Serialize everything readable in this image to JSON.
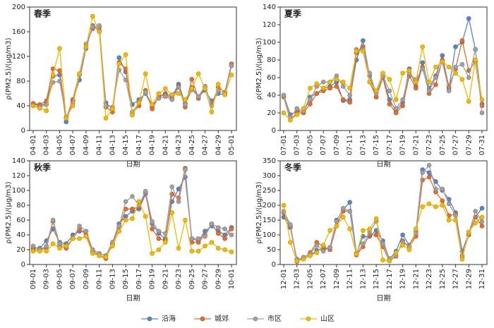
{
  "chart_data": [
    {
      "type": "line",
      "title": "春季",
      "x_label": "日期",
      "y_label": "ρ(PM2.5)/(μg/m3)",
      "categories": [
        "04-01",
        null,
        "04-03",
        null,
        "04-05",
        null,
        "04-07",
        null,
        "04-09",
        null,
        "04-11",
        null,
        "04-13",
        null,
        "04-15",
        null,
        "04-17",
        null,
        "04-19",
        null,
        "04-21",
        null,
        "04-23",
        null,
        "04-25",
        null,
        "04-27",
        null,
        "04-29",
        null,
        "05-01"
      ],
      "ylim": [
        0,
        200
      ],
      "yticks": [
        0,
        40,
        80,
        120,
        160,
        200
      ],
      "series": [
        {
          "name": "沿海",
          "color": "#5b84c4",
          "values": [
            43,
            40,
            44,
            88,
            90,
            14,
            48,
            82,
            133,
            170,
            162,
            45,
            35,
            118,
            95,
            42,
            50,
            60,
            38,
            55,
            60,
            55,
            75,
            44,
            70,
            55,
            65,
            48,
            60,
            58,
            105
          ]
        },
        {
          "name": "城郊",
          "color": "#e46c2c",
          "values": [
            44,
            42,
            48,
            100,
            97,
            20,
            50,
            92,
            140,
            165,
            168,
            38,
            30,
            110,
            100,
            28,
            40,
            65,
            35,
            55,
            58,
            52,
            72,
            38,
            83,
            52,
            70,
            42,
            70,
            62,
            108
          ]
        },
        {
          "name": "市区",
          "color": "#a0a0a0",
          "values": [
            40,
            38,
            42,
            78,
            80,
            22,
            45,
            90,
            140,
            168,
            170,
            40,
            38,
            98,
            82,
            30,
            45,
            62,
            42,
            52,
            55,
            50,
            70,
            42,
            66,
            55,
            72,
            40,
            65,
            60,
            105
          ]
        },
        {
          "name": "山区",
          "color": "#f5b800",
          "values": [
            40,
            36,
            32,
            90,
            133,
            20,
            40,
            92,
            135,
            185,
            160,
            20,
            35,
            108,
            123,
            25,
            45,
            92,
            42,
            60,
            68,
            58,
            60,
            50,
            68,
            92,
            68,
            30,
            75,
            58,
            90
          ]
        }
      ]
    },
    {
      "type": "line",
      "title": "夏季",
      "x_label": "日期",
      "y_label": "ρ(PM2.5)/(μg/m3)",
      "categories": [
        "07-01",
        null,
        "07-03",
        null,
        "07-05",
        null,
        "07-07",
        null,
        "07-09",
        null,
        "07-11",
        null,
        "07-13",
        null,
        "07-15",
        null,
        "07-17",
        null,
        "07-19",
        null,
        "07-21",
        null,
        "07-23",
        null,
        "07-25",
        null,
        "07-27",
        null,
        "07-29",
        null,
        "07-31"
      ],
      "ylim": [
        0,
        140
      ],
      "yticks": [
        0,
        20,
        40,
        60,
        80,
        100,
        120,
        140
      ],
      "series": [
        {
          "color": "#5b84c4",
          "values": [
            40,
            18,
            22,
            22,
            38,
            42,
            48,
            50,
            55,
            34,
            35,
            80,
            102,
            62,
            38,
            62,
            35,
            22,
            32,
            70,
            50,
            77,
            48,
            62,
            85,
            48,
            95,
            100,
            127,
            92,
            30
          ]
        },
        {
          "color": "#e46c2c",
          "values": [
            38,
            12,
            20,
            20,
            30,
            42,
            45,
            48,
            50,
            35,
            32,
            88,
            95,
            55,
            38,
            60,
            30,
            20,
            28,
            62,
            48,
            72,
            42,
            52,
            80,
            50,
            70,
            102,
            68,
            78,
            28
          ]
        },
        {
          "color": "#a0a0a0",
          "values": [
            40,
            15,
            25,
            22,
            35,
            50,
            55,
            55,
            62,
            50,
            40,
            92,
            92,
            65,
            42,
            62,
            45,
            25,
            35,
            65,
            58,
            70,
            45,
            60,
            78,
            45,
            72,
            75,
            60,
            92,
            20
          ]
        },
        {
          "color": "#f5b800",
          "values": [
            20,
            12,
            18,
            25,
            48,
            53,
            48,
            55,
            58,
            55,
            48,
            90,
            90,
            55,
            45,
            65,
            58,
            35,
            65,
            68,
            55,
            95,
            55,
            72,
            78,
            72,
            65,
            58,
            33,
            80,
            35
          ]
        }
      ]
    },
    {
      "type": "line",
      "title": "秋季",
      "x_label": "日期",
      "y_label": "ρ(PM2.5)/(μg/m3)",
      "categories": [
        "09-01",
        null,
        "09-03",
        null,
        "09-05",
        null,
        "09-07",
        null,
        "09-09",
        null,
        "09-11",
        null,
        "09-13",
        null,
        "09-15",
        null,
        "09-17",
        null,
        "09-19",
        null,
        "09-21",
        null,
        "09-23",
        null,
        "09-25",
        null,
        "09-27",
        null,
        "09-29",
        null,
        "10-01"
      ],
      "ylim": [
        0,
        140
      ],
      "yticks": [
        0,
        20,
        40,
        60,
        80,
        100,
        120,
        140
      ],
      "series": [
        {
          "color": "#5b84c4",
          "values": [
            22,
            22,
            32,
            48,
            30,
            28,
            40,
            45,
            45,
            20,
            15,
            12,
            30,
            55,
            65,
            72,
            75,
            95,
            55,
            42,
            35,
            85,
            102,
            118,
            35,
            32,
            45,
            52,
            45,
            40,
            50
          ]
        },
        {
          "color": "#e46c2c",
          "values": [
            20,
            20,
            22,
            58,
            25,
            22,
            35,
            48,
            40,
            18,
            12,
            8,
            28,
            50,
            75,
            75,
            78,
            98,
            48,
            35,
            32,
            95,
            90,
            130,
            30,
            30,
            40,
            55,
            42,
            35,
            48
          ]
        },
        {
          "color": "#a0a0a0",
          "values": [
            25,
            20,
            25,
            60,
            28,
            25,
            35,
            52,
            45,
            20,
            15,
            12,
            30,
            52,
            85,
            92,
            80,
            99,
            58,
            45,
            42,
            105,
            85,
            128,
            35,
            35,
            38,
            55,
            50,
            48,
            40
          ]
        },
        {
          "color": "#f5b800",
          "values": [
            18,
            18,
            18,
            28,
            22,
            25,
            35,
            35,
            38,
            15,
            12,
            10,
            25,
            45,
            60,
            62,
            85,
            65,
            15,
            20,
            30,
            70,
            22,
            60,
            18,
            18,
            25,
            30,
            22,
            20,
            17
          ]
        }
      ]
    },
    {
      "type": "line",
      "title": "冬季",
      "x_label": "日期",
      "y_label": "ρ(PM2.5)/(μg/m3)",
      "categories": [
        "12-01",
        null,
        "12-03",
        null,
        "12-05",
        null,
        "12-07",
        null,
        "12-09",
        null,
        "12-11",
        null,
        "12-13",
        null,
        "12-15",
        null,
        "12-17",
        null,
        "12-19",
        null,
        "12-21",
        null,
        "12-23",
        null,
        "12-25",
        null,
        "12-27",
        null,
        "12-29",
        null,
        "12-31"
      ],
      "ylim": [
        0,
        350
      ],
      "yticks": [
        0,
        50,
        100,
        150,
        200,
        250,
        300,
        350
      ],
      "series": [
        {
          "color": "#5b84c4",
          "values": [
            160,
            125,
            18,
            20,
            30,
            48,
            50,
            58,
            150,
            185,
            210,
            38,
            95,
            95,
            115,
            80,
            18,
            45,
            100,
            65,
            110,
            320,
            310,
            280,
            250,
            220,
            175,
            45,
            105,
            160,
            190
          ]
        },
        {
          "color": "#e46c2c",
          "values": [
            175,
            130,
            10,
            22,
            40,
            75,
            60,
            50,
            130,
            180,
            180,
            32,
            60,
            100,
            100,
            60,
            12,
            28,
            80,
            60,
            95,
            285,
            295,
            245,
            215,
            165,
            170,
            30,
            100,
            160,
            130
          ]
        },
        {
          "color": "#a0a0a0",
          "values": [
            180,
            135,
            15,
            25,
            35,
            65,
            45,
            58,
            145,
            190,
            180,
            35,
            70,
            110,
            145,
            70,
            20,
            30,
            75,
            60,
            105,
            310,
            335,
            255,
            255,
            205,
            165,
            25,
            105,
            180,
            145
          ]
        },
        {
          "color": "#f5b800",
          "values": [
            200,
            75,
            12,
            18,
            30,
            40,
            65,
            115,
            130,
            160,
            120,
            35,
            115,
            120,
            155,
            15,
            12,
            40,
            65,
            50,
            120,
            195,
            205,
            195,
            200,
            150,
            150,
            18,
            110,
            140,
            160
          ]
        }
      ]
    }
  ]
}
